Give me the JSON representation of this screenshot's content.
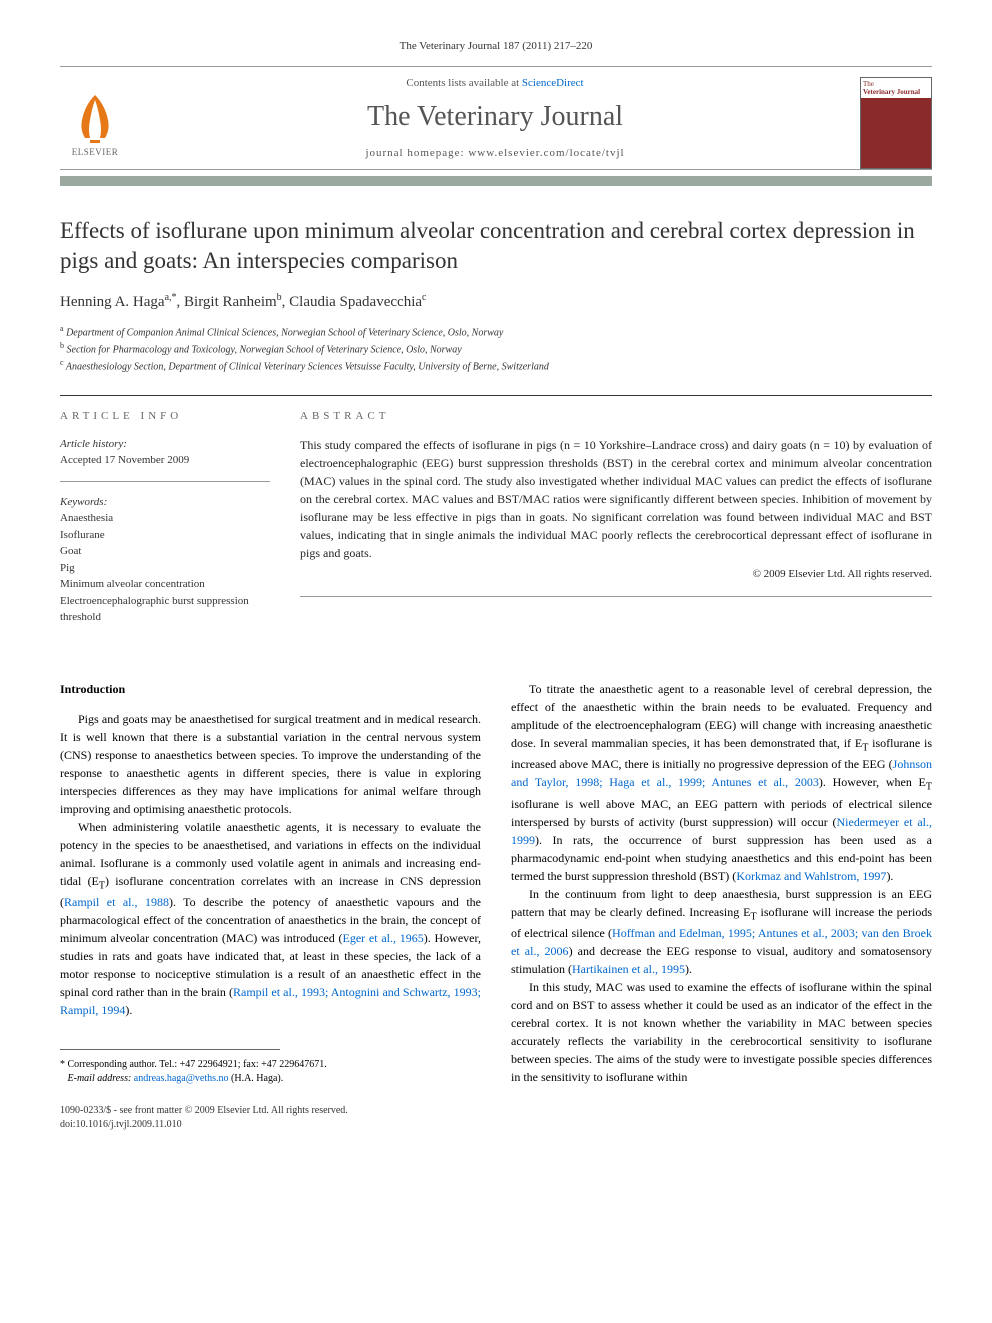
{
  "journal_ref": "The Veterinary Journal 187 (2011) 217–220",
  "header": {
    "contents_prefix": "Contents lists available at ",
    "contents_link": "ScienceDirect",
    "journal_name": "The Veterinary Journal",
    "homepage_prefix": "journal homepage: ",
    "homepage_url": "www.elsevier.com/locate/tvjl",
    "publisher": "ELSEVIER",
    "cover_title_line1": "The",
    "cover_title_line2": "Veterinary Journal"
  },
  "title": "Effects of isoflurane upon minimum alveolar concentration and cerebral cortex depression in pigs and goats: An interspecies comparison",
  "authors_html": "Henning A. Haga<sup>a,*</sup>, Birgit Ranheim<sup>b</sup>, Claudia Spadavecchia<sup>c</sup>",
  "affiliations": [
    {
      "sup": "a",
      "text": "Department of Companion Animal Clinical Sciences, Norwegian School of Veterinary Science, Oslo, Norway"
    },
    {
      "sup": "b",
      "text": "Section for Pharmacology and Toxicology, Norwegian School of Veterinary Science, Oslo, Norway"
    },
    {
      "sup": "c",
      "text": "Anaesthesiology Section, Department of Clinical Veterinary Sciences Vetsuisse Faculty, University of Berne, Switzerland"
    }
  ],
  "info": {
    "heading": "ARTICLE INFO",
    "history_label": "Article history:",
    "history_value": "Accepted 17 November 2009",
    "keywords_label": "Keywords:",
    "keywords": [
      "Anaesthesia",
      "Isoflurane",
      "Goat",
      "Pig",
      "Minimum alveolar concentration",
      "Electroencephalographic burst suppression threshold"
    ]
  },
  "abstract": {
    "heading": "ABSTRACT",
    "text": "This study compared the effects of isoflurane in pigs (n = 10 Yorkshire–Landrace cross) and dairy goats (n = 10) by evaluation of electroencephalographic (EEG) burst suppression thresholds (BST) in the cerebral cortex and minimum alveolar concentration (MAC) values in the spinal cord. The study also investigated whether individual MAC values can predict the effects of isoflurane on the cerebral cortex. MAC values and BST/MAC ratios were significantly different between species. Inhibition of movement by isoflurane may be less effective in pigs than in goats. No significant correlation was found between individual MAC and BST values, indicating that in single animals the individual MAC poorly reflects the cerebrocortical depressant effect of isoflurane in pigs and goats.",
    "copyright": "© 2009 Elsevier Ltd. All rights reserved."
  },
  "intro_heading": "Introduction",
  "left_paras": [
    "Pigs and goats may be anaesthetised for surgical treatment and in medical research. It is well known that there is a substantial variation in the central nervous system (CNS) response to anaesthetics between species. To improve the understanding of the response to anaesthetic agents in different species, there is value in exploring interspecies differences as they may have implications for animal welfare through improving and optimising anaesthetic protocols.",
    "When administering volatile anaesthetic agents, it is necessary to evaluate the potency in the species to be anaesthetised, and variations in effects on the individual animal. Isoflurane is a commonly used volatile agent in animals and increasing end-tidal (E<sub>T</sub>) isoflurane concentration correlates with an increase in CNS depression (<a href='#'>Rampil et al., 1988</a>). To describe the potency of anaesthetic vapours and the pharmacological effect of the concentration of anaesthetics in the brain, the concept of minimum alveolar concentration (MAC) was introduced (<a href='#'>Eger et al., 1965</a>). However, studies in rats and goats have indicated that, at least in these species, the lack of a motor response to nociceptive stimulation is a result of an anaesthetic effect in the spinal cord rather than in the brain (<a href='#'>Rampil et al., 1993; Antognini and Schwartz, 1993; Rampil, 1994</a>)."
  ],
  "right_paras": [
    "To titrate the anaesthetic agent to a reasonable level of cerebral depression, the effect of the anaesthetic within the brain needs to be evaluated. Frequency and amplitude of the electroencephalogram (EEG) will change with increasing anaesthetic dose. In several mammalian species, it has been demonstrated that, if E<sub>T</sub> isoflurane is increased above MAC, there is initially no progressive depression of the EEG (<a href='#'>Johnson and Taylor, 1998; Haga et al., 1999; Antunes et al., 2003</a>). However, when E<sub>T</sub> isoflurane is well above MAC, an EEG pattern with periods of electrical silence interspersed by bursts of activity (burst suppression) will occur (<a href='#'>Niedermeyer et al., 1999</a>). In rats, the occurrence of burst suppression has been used as a pharmacodynamic end-point when studying anaesthetics and this end-point has been termed the burst suppression threshold (BST) (<a href='#'>Korkmaz and Wahlstrom, 1997</a>).",
    "In the continuum from light to deep anaesthesia, burst suppression is an EEG pattern that may be clearly defined. Increasing E<sub>T</sub> isoflurane will increase the periods of electrical silence (<a href='#'>Hoffman and Edelman, 1995; Antunes et al., 2003; van den Broek et al., 2006</a>) and decrease the EEG response to visual, auditory and somatosensory stimulation (<a href='#'>Hartikainen et al., 1995</a>).",
    "In this study, MAC was used to examine the effects of isoflurane within the spinal cord and on BST to assess whether it could be used as an indicator of the effect in the cerebral cortex. It is not known whether the variability in MAC between species accurately reflects the variability in the cerebrocortical sensitivity to isoflurane between species. The aims of the study were to investigate possible species differences in the sensitivity to isoflurane within"
  ],
  "corresponding": {
    "star": "*",
    "text": "Corresponding author. Tel.: +47 22964921; fax: +47 229647671.",
    "email_label": "E-mail address:",
    "email": "andreas.haga@veths.no",
    "email_suffix": "(H.A. Haga)."
  },
  "doi": {
    "line1": "1090-0233/$ - see front matter © 2009 Elsevier Ltd. All rights reserved.",
    "line2": "doi:10.1016/j.tvjl.2009.11.010"
  },
  "colors": {
    "link": "#0066cc",
    "bar": "#9ba8a0",
    "cover": "#8b2a2a",
    "text": "#222222"
  }
}
